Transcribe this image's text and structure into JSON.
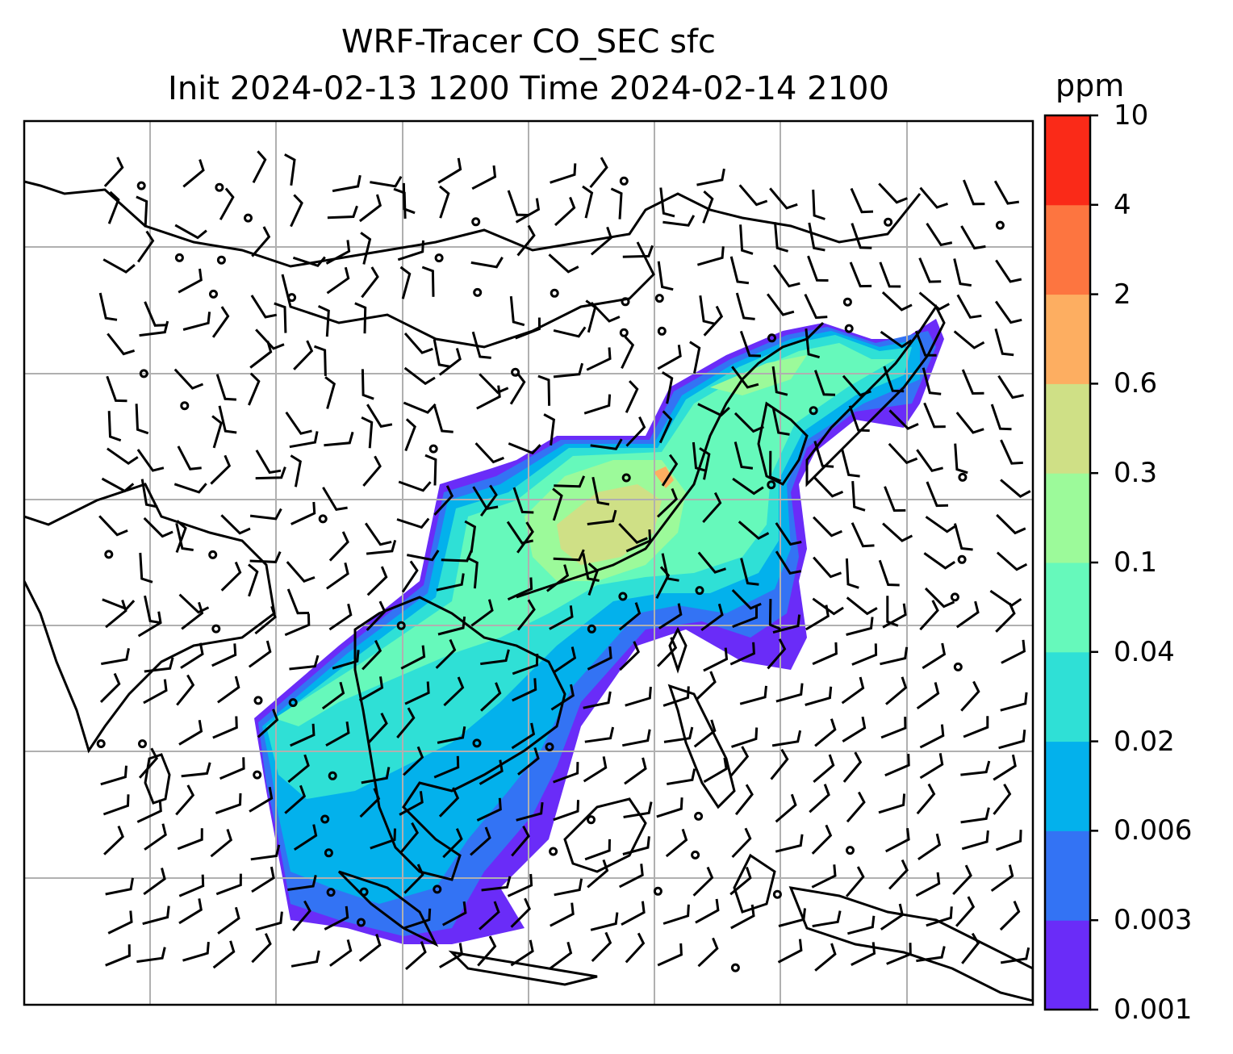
{
  "title": {
    "line1": "WRF-Tracer CO_SEC sfc",
    "line2": "Init 2024-02-13 1200 Time 2024-02-14 2100"
  },
  "colorbar": {
    "unit": "ppm",
    "ticks": [
      "0.001",
      "0.003",
      "0.006",
      "0.02",
      "0.04",
      "0.1",
      "0.3",
      "0.6",
      "2",
      "4",
      "10"
    ],
    "colors": [
      "#6a2cf8",
      "#3373f4",
      "#03b1ec",
      "#2fe0d6",
      "#66f9bb",
      "#9cfa9a",
      "#cfe086",
      "#fdae61",
      "#fd7540",
      "#fa2a18"
    ]
  },
  "map": {
    "gridlines": true,
    "features": [
      "coastlines",
      "wind-barbs",
      "co-tracer-concentration"
    ]
  }
}
